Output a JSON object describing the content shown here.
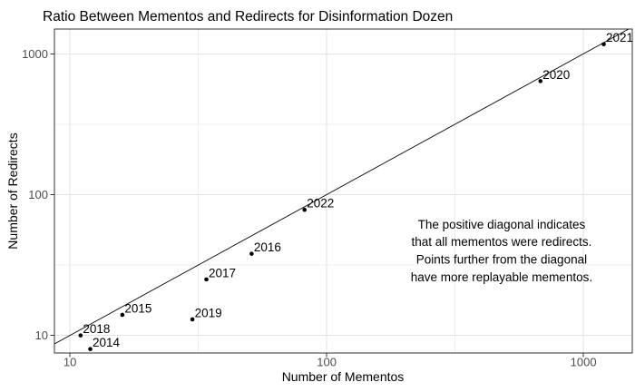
{
  "title": "Ratio Between Mementos and Redirects for Disinformation Dozen",
  "colors": {
    "point": "#000000",
    "identity_line": "#000000",
    "panel_border": "#333333",
    "grid_major": "#e2e2e2",
    "grid_minor": "#efefef",
    "tick_label": "#4d4d4d",
    "text": "#000000",
    "background": "#ffffff"
  },
  "chart_data": {
    "type": "scatter",
    "title": "Ratio Between Mementos and Redirects for Disinformation Dozen",
    "xlabel": "Number of Mementos",
    "ylabel": "Number of Redirects",
    "x_scale": "log10",
    "y_scale": "log10",
    "xlim": [
      8.7,
      1550
    ],
    "ylim": [
      7.5,
      1500
    ],
    "x_ticks": [
      10,
      100,
      1000
    ],
    "y_ticks": [
      10,
      100,
      1000
    ],
    "x_tick_labels": [
      "10",
      "100",
      "1000"
    ],
    "y_tick_labels": [
      "10",
      "100",
      "1000"
    ],
    "x_minor_gridlines": [
      31.62,
      316.2
    ],
    "y_minor_gridlines": [
      31.62,
      316.2
    ],
    "grid": "major and minor, light gray, white panel with dark border",
    "legend": "none",
    "points": [
      {
        "label": "2014",
        "x": 12,
        "y": 8
      },
      {
        "label": "2015",
        "x": 16,
        "y": 14
      },
      {
        "label": "2016",
        "x": 51,
        "y": 38
      },
      {
        "label": "2017",
        "x": 34,
        "y": 25
      },
      {
        "label": "2018",
        "x": 11,
        "y": 10
      },
      {
        "label": "2019",
        "x": 30,
        "y": 13
      },
      {
        "label": "2020",
        "x": 680,
        "y": 640
      },
      {
        "label": "2021",
        "x": 1200,
        "y": 1170
      },
      {
        "label": "2022",
        "x": 82,
        "y": 78
      }
    ],
    "reference_line": {
      "type": "identity",
      "equation": "y = x",
      "style": "solid thin black diagonal"
    },
    "annotation": {
      "x": 480,
      "y": 40,
      "lines": [
        "The positive diagonal indicates",
        "that all mementos were redirects.",
        "Points further from the diagonal",
        "have more replayable mementos."
      ]
    }
  }
}
